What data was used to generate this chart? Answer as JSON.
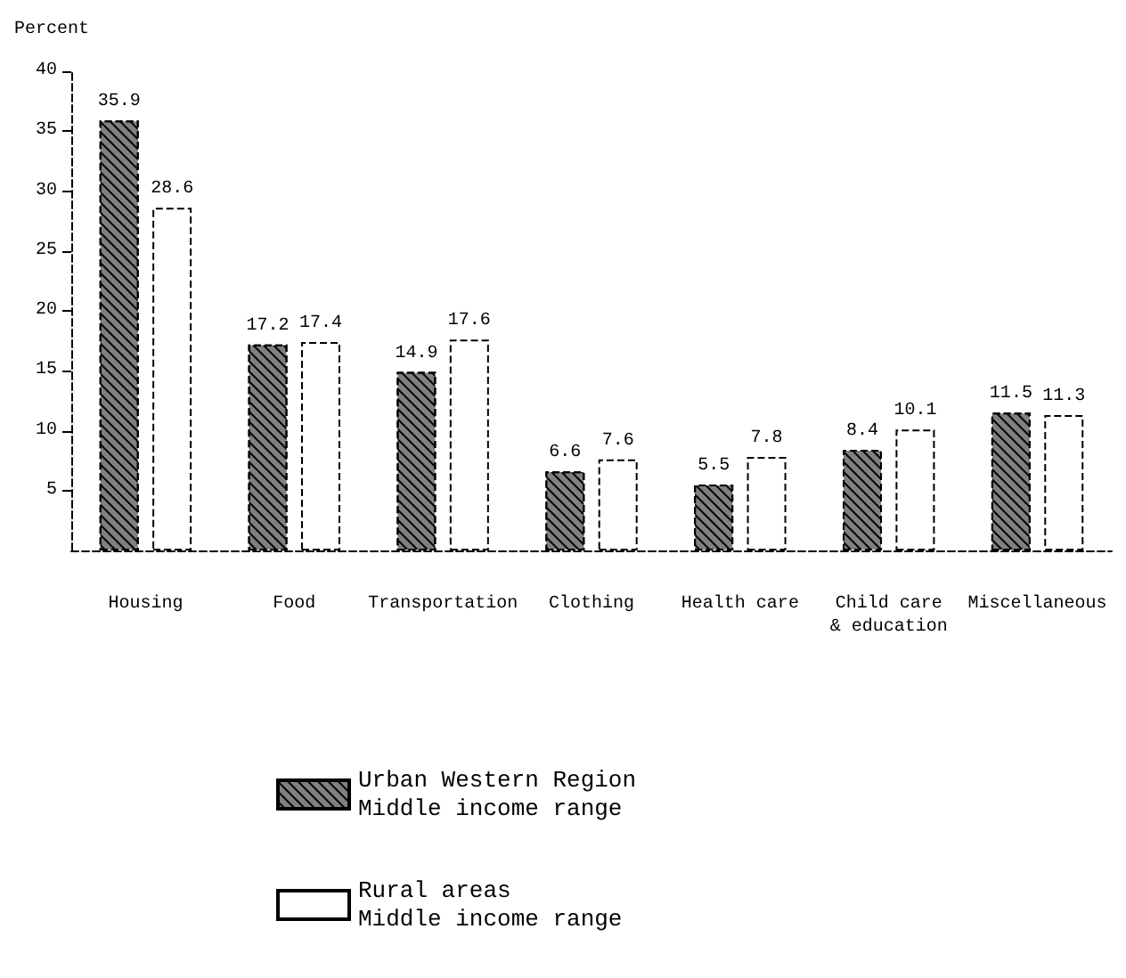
{
  "chart_data": {
    "type": "bar",
    "ylabel": "Percent",
    "categories": [
      "Housing",
      "Food",
      "Transportation",
      "Clothing",
      "Health care",
      "Child care\n& education",
      "Miscellaneous"
    ],
    "series": [
      {
        "name": "Urban Western Region\nMiddle income range",
        "color": "#808080",
        "values": [
          35.9,
          17.2,
          14.9,
          6.6,
          5.5,
          8.4,
          11.5
        ]
      },
      {
        "name": "Rural areas\nMiddle income range",
        "color": "#ffffff",
        "values": [
          28.6,
          17.4,
          17.6,
          7.6,
          7.8,
          10.1,
          11.3
        ]
      }
    ],
    "ylim": [
      0,
      40
    ],
    "yticks": [
      5,
      10,
      15,
      20,
      25,
      30,
      35,
      40
    ],
    "data_labels": true,
    "grid": false,
    "legend": "bottom"
  }
}
